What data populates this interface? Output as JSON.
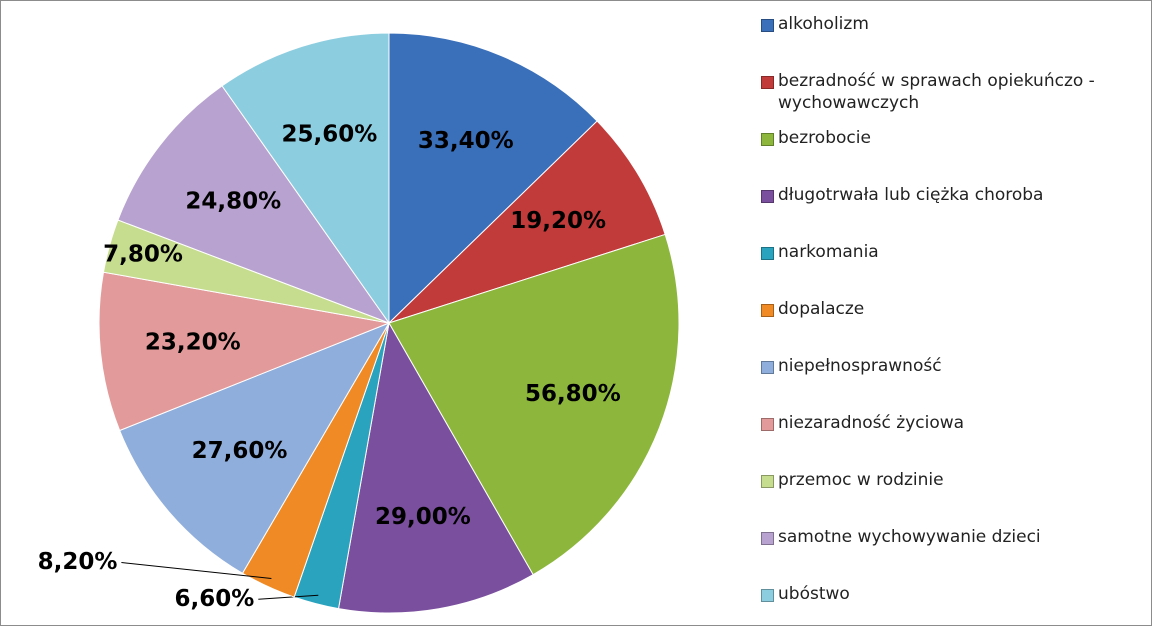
{
  "chart_data": {
    "type": "pie",
    "categories": [
      "alkoholizm",
      "bezradność w sprawach opiekuńczo - wychowawczych",
      "bezrobocie",
      "długotrwała lub ciężka choroba",
      "narkomania",
      "dopalacze",
      "niepełnosprawność",
      "niezaradność życiowa",
      "przemoc w rodzinie",
      "samotne wychowywanie dzieci",
      "ubóstwo"
    ],
    "values": [
      33.4,
      19.2,
      56.8,
      29.0,
      6.6,
      8.2,
      27.6,
      23.2,
      7.8,
      24.8,
      25.6
    ],
    "value_labels": [
      "33,40%",
      "19,20%",
      "56,80%",
      "29,00%",
      "6,60%",
      "8,20%",
      "27,60%",
      "23,20%",
      "7,80%",
      "24,80%",
      "25,60%"
    ],
    "colors": [
      "#3a6fba",
      "#c23b3b",
      "#8db63c",
      "#7a4f9e",
      "#2aa3bf",
      "#ef8a24",
      "#8faedb",
      "#e39a9a",
      "#c6dc8f",
      "#b8a2cf",
      "#8dcde0"
    ],
    "legend": "right"
  }
}
